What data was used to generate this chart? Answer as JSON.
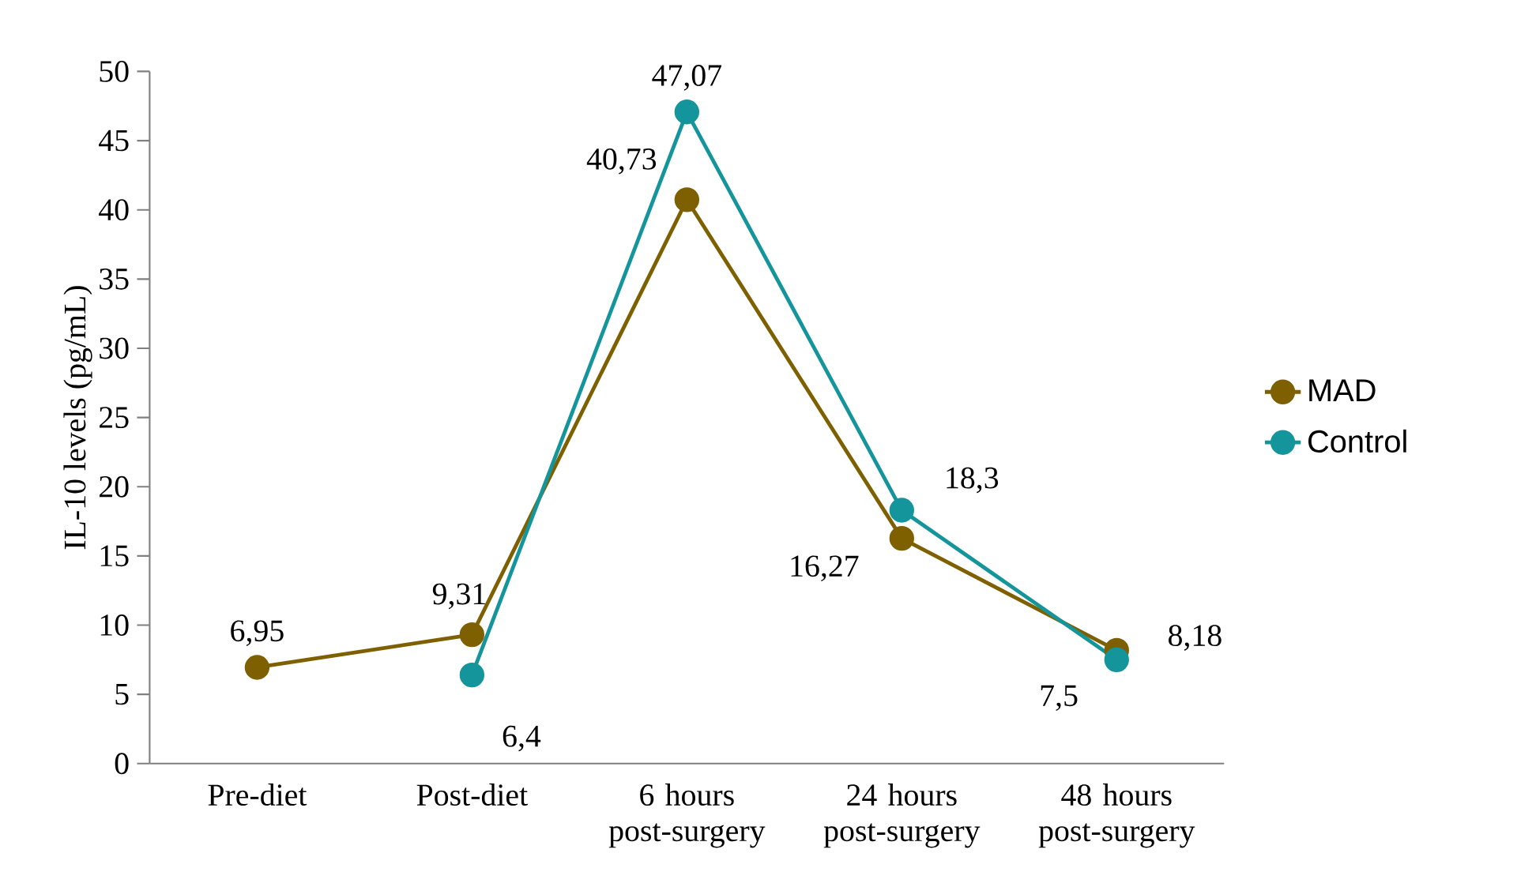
{
  "chart_data": {
    "type": "line",
    "ylabel": "IL-10 levels (pg/mL)",
    "categories": [
      "Pre-diet",
      "Post-diet",
      "6 hours post-surgery",
      "24 hours post-surgery",
      "48 hours post-surgery"
    ],
    "series": [
      {
        "name": "MAD",
        "color": "#7f6000",
        "values": [
          6.95,
          9.31,
          40.73,
          16.27,
          8.18
        ],
        "value_labels": [
          "6,95",
          "9,31",
          "40,73",
          "16,27",
          "8,18"
        ]
      },
      {
        "name": "Control",
        "color": "#13959b",
        "values": [
          null,
          6.4,
          47.07,
          18.3,
          7.5
        ],
        "value_labels": [
          null,
          "6,4",
          "47,07",
          "18,3",
          "7,5"
        ]
      }
    ],
    "ylim": [
      0,
      50
    ],
    "yticks": [
      0,
      5,
      10,
      15,
      20,
      25,
      30,
      35,
      40,
      45,
      50
    ],
    "grid": false,
    "legend": "right",
    "marker": "circle",
    "line_style": "solid"
  }
}
